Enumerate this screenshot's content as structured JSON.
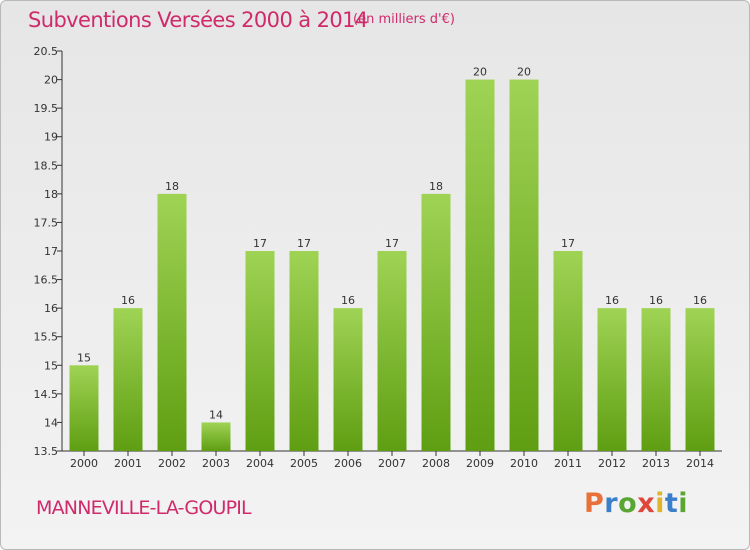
{
  "title": "Subventions Versées 2000 à 2014",
  "unit": "(en milliers d'€)",
  "commune": "MANNEVILLE-LA-GOUPIL",
  "logo": {
    "letters": [
      "P",
      "r",
      "o",
      "x",
      "i",
      "t",
      "i"
    ],
    "colors": [
      "#e8703a",
      "#3b7ec9",
      "#59a632",
      "#e0463a",
      "#e0b52a",
      "#3b7ec9",
      "#59a632"
    ]
  },
  "colors": {
    "bar_top": "#9fd354",
    "bar_bottom": "#5f9e12",
    "title": "#cf2a6a",
    "background": "#ebebeb"
  },
  "chart_data": {
    "type": "bar",
    "title": "Subventions Versées 2000 à 2014",
    "subtitle": "(en milliers d'€)",
    "categories": [
      "2000",
      "2001",
      "2002",
      "2003",
      "2004",
      "2005",
      "2006",
      "2007",
      "2008",
      "2009",
      "2010",
      "2011",
      "2012",
      "2013",
      "2014"
    ],
    "values": [
      15,
      16,
      18,
      14,
      17,
      17,
      16,
      17,
      18,
      20,
      20,
      17,
      16,
      16,
      16
    ],
    "value_labels": [
      "15",
      "16",
      "18",
      "14",
      "17",
      "17",
      "16",
      "17",
      "18",
      "20",
      "20",
      "17",
      "16",
      "16",
      "16"
    ],
    "ylim": [
      13.5,
      20.5
    ],
    "yticks": [
      13.5,
      14,
      14.5,
      15,
      15.5,
      16,
      16.5,
      17,
      17.5,
      18,
      18.5,
      19,
      19.5,
      20,
      20.5
    ],
    "ytick_labels": [
      "13.5",
      "14",
      "14.5",
      "15",
      "15.5",
      "16",
      "16.5",
      "17",
      "17.5",
      "18",
      "18.5",
      "19",
      "19.5",
      "20",
      "20.5"
    ],
    "grid": false,
    "legend": "none"
  }
}
